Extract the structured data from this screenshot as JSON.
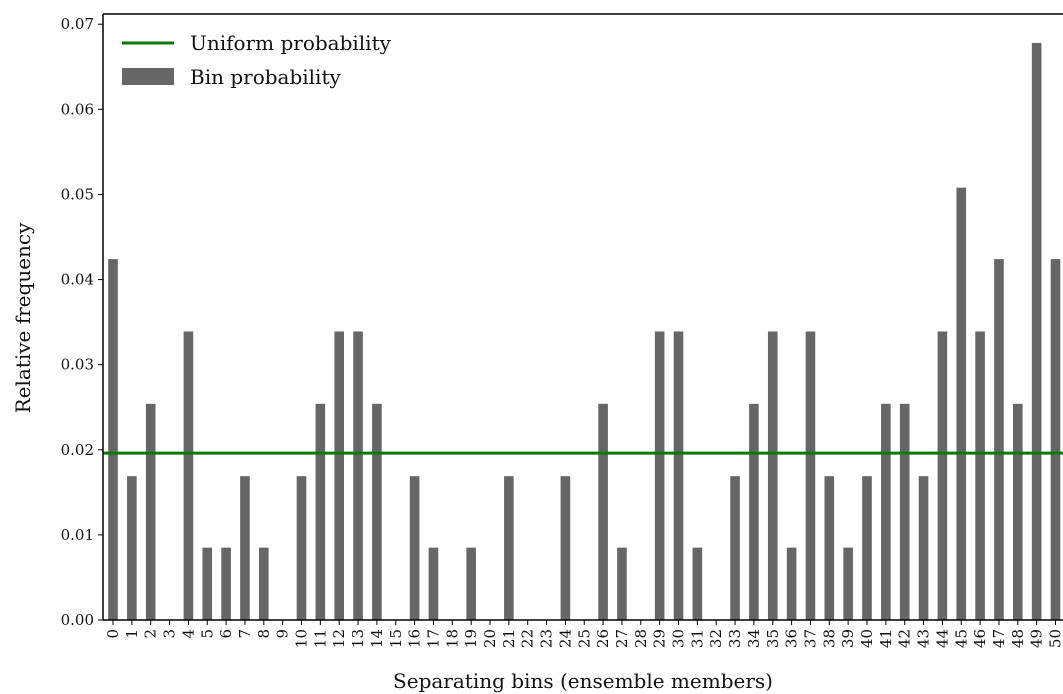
{
  "chart_data": {
    "type": "bar",
    "xlabel": "Separating bins (ensemble members)",
    "ylabel": "Relative frequency",
    "categories": [
      "0",
      "1",
      "2",
      "3",
      "4",
      "5",
      "6",
      "7",
      "8",
      "9",
      "10",
      "11",
      "12",
      "13",
      "14",
      "15",
      "16",
      "17",
      "18",
      "19",
      "20",
      "21",
      "22",
      "23",
      "24",
      "25",
      "26",
      "27",
      "28",
      "29",
      "30",
      "31",
      "32",
      "33",
      "34",
      "35",
      "36",
      "37",
      "38",
      "39",
      "40",
      "41",
      "42",
      "43",
      "44",
      "45",
      "46",
      "47",
      "48",
      "49",
      "50"
    ],
    "values": [
      0.0424,
      0.0169,
      0.0254,
      0,
      0.0339,
      0.0085,
      0.0085,
      0.0169,
      0.0085,
      0,
      0.0169,
      0.0254,
      0.0339,
      0.0339,
      0.0254,
      0,
      0.0169,
      0.0085,
      0,
      0.0085,
      0,
      0.0169,
      0,
      0,
      0.0169,
      0,
      0.0254,
      0.0085,
      0,
      0.0339,
      0.0339,
      0.0085,
      0,
      0.0169,
      0.0254,
      0.0339,
      0.0085,
      0.0339,
      0.0169,
      0.0085,
      0.0169,
      0.0254,
      0.0254,
      0.0169,
      0.0339,
      0.0508,
      0.0339,
      0.0424,
      0.0254,
      0.0678,
      0.0424
    ],
    "uniform_value": 0.0196,
    "ylim": [
      0,
      0.0712
    ],
    "yticks": [
      "0.00",
      "0.01",
      "0.02",
      "0.03",
      "0.04",
      "0.05",
      "0.06",
      "0.07"
    ],
    "legend": {
      "position": "top-left",
      "entries": [
        {
          "label": "Uniform probability",
          "kind": "line"
        },
        {
          "label": "Bin probability",
          "kind": "bar"
        }
      ]
    },
    "colors": {
      "bar": "#666666",
      "uniform": "#0a7a0a",
      "axis": "#000000"
    }
  }
}
